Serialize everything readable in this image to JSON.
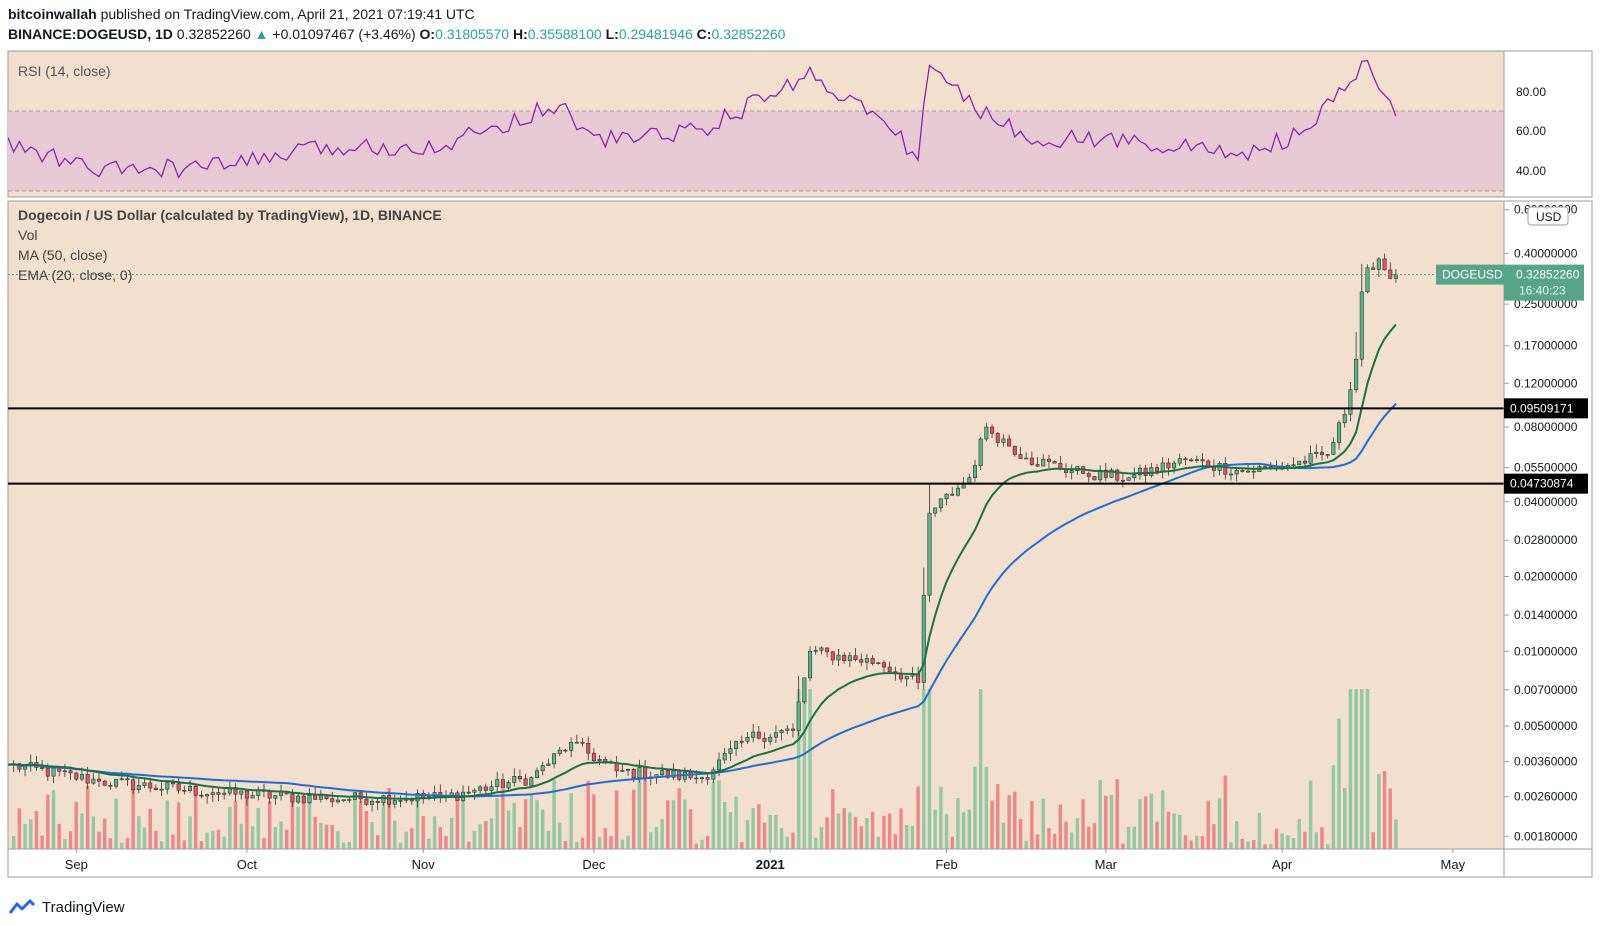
{
  "header": {
    "author": "bitcoinwallah",
    "published": "published on TradingView.com, April 21, 2021 07:19:41 UTC",
    "symbol": "BINANCE:DOGEUSD, 1D",
    "last": "0.32852260",
    "change_arrow": "▲",
    "change": "+0.01097467 (+3.46%)",
    "o_label": "O:",
    "o_value": "0.31805570",
    "h_label": "H:",
    "h_value": "0.35588100",
    "l_label": "L:",
    "l_value": "0.29481946",
    "c_label": "C:",
    "c_value": "0.32852260"
  },
  "rsi_pane": {
    "title": "RSI (14, close)",
    "ticks": [
      "80.00",
      "60.00",
      "40.00"
    ]
  },
  "main_pane": {
    "title": "Dogecoin / US Dollar (calculated by TradingView), 1D, BINANCE",
    "legend": [
      "Vol",
      "MA (50, close)",
      "EMA (20, close, 0)"
    ],
    "currency": "USD",
    "price_ticks": [
      "0.60000000",
      "0.40000000",
      "0.25000000",
      "0.17000000",
      "0.12000000",
      "0.08000000",
      "0.05500000",
      "0.04000000",
      "0.02800000",
      "0.02000000",
      "0.01400000",
      "0.01000000",
      "0.00700000",
      "0.00500000",
      "0.00360000",
      "0.00260000",
      "0.00180000"
    ],
    "symbol_badge": "DOGEUSD",
    "last_price": "0.32852260",
    "countdown": "16:40:23",
    "hline_1": "0.09509171",
    "hline_2": "0.04730874"
  },
  "time_axis": {
    "labels": [
      "Sep",
      "Oct",
      "Nov",
      "Dec",
      "2021",
      "Feb",
      "Mar",
      "Apr",
      "May"
    ]
  },
  "footer": {
    "brand": "TradingView"
  },
  "colors": {
    "background": "#f2dfcd",
    "rsi_band": "#e6c9d3",
    "rsi_line": "#8e24aa",
    "up": "#53b987",
    "down": "#eb4d5c",
    "ma": "#1e6ed6",
    "ema": "#157347",
    "badge": "#56a589"
  },
  "chart_data": {
    "type": "candlestick",
    "scale": "log",
    "ylim": [
      0.0016,
      0.65
    ],
    "x_range": [
      "2020-08-20",
      "2021-05-10"
    ],
    "note_series": [
      "Vol",
      "MA (50, close)",
      "EMA (20, close, 0)"
    ],
    "anchors": [
      [
        "2020-08-20",
        0.0035
      ],
      [
        "2020-09-05",
        0.003
      ],
      [
        "2020-09-25",
        0.0027
      ],
      [
        "2020-10-15",
        0.00255
      ],
      [
        "2020-11-05",
        0.0026
      ],
      [
        "2020-11-20",
        0.0031
      ],
      [
        "2020-11-27",
        0.0043
      ],
      [
        "2020-12-05",
        0.0033
      ],
      [
        "2020-12-20",
        0.0031
      ],
      [
        "2020-12-28",
        0.0045
      ],
      [
        "2021-01-05",
        0.0048
      ],
      [
        "2021-01-08",
        0.01
      ],
      [
        "2021-01-20",
        0.009
      ],
      [
        "2021-01-27",
        0.0075
      ],
      [
        "2021-01-29",
        0.036
      ],
      [
        "2021-02-05",
        0.05
      ],
      [
        "2021-02-08",
        0.08
      ],
      [
        "2021-02-15",
        0.06
      ],
      [
        "2021-02-25",
        0.052
      ],
      [
        "2021-03-05",
        0.05
      ],
      [
        "2021-03-15",
        0.059
      ],
      [
        "2021-03-25",
        0.053
      ],
      [
        "2021-04-02",
        0.056
      ],
      [
        "2021-04-09",
        0.062
      ],
      [
        "2021-04-12",
        0.09
      ],
      [
        "2021-04-14",
        0.15
      ],
      [
        "2021-04-15",
        0.28
      ],
      [
        "2021-04-16",
        0.35
      ],
      [
        "2021-04-18",
        0.38
      ],
      [
        "2021-04-20",
        0.317
      ],
      [
        "2021-04-21",
        0.3285226
      ]
    ],
    "rsi": [
      [
        "2020-08-20",
        50
      ],
      [
        "2020-09-05",
        36
      ],
      [
        "2020-09-25",
        38
      ],
      [
        "2020-10-15",
        48
      ],
      [
        "2020-11-05",
        50
      ],
      [
        "2020-11-25",
        72
      ],
      [
        "2020-12-01",
        52
      ],
      [
        "2020-12-20",
        58
      ],
      [
        "2020-12-28",
        70
      ],
      [
        "2021-01-08",
        88
      ],
      [
        "2021-01-20",
        64
      ],
      [
        "2021-01-27",
        44
      ],
      [
        "2021-01-29",
        93
      ],
      [
        "2021-02-05",
        72
      ],
      [
        "2021-02-15",
        54
      ],
      [
        "2021-03-05",
        52
      ],
      [
        "2021-03-25",
        45
      ],
      [
        "2021-04-05",
        56
      ],
      [
        "2021-04-12",
        80
      ],
      [
        "2021-04-16",
        96
      ],
      [
        "2021-04-18",
        76
      ],
      [
        "2021-04-21",
        67
      ]
    ],
    "horizontal_levels": [
      0.09509171,
      0.04730874
    ]
  }
}
